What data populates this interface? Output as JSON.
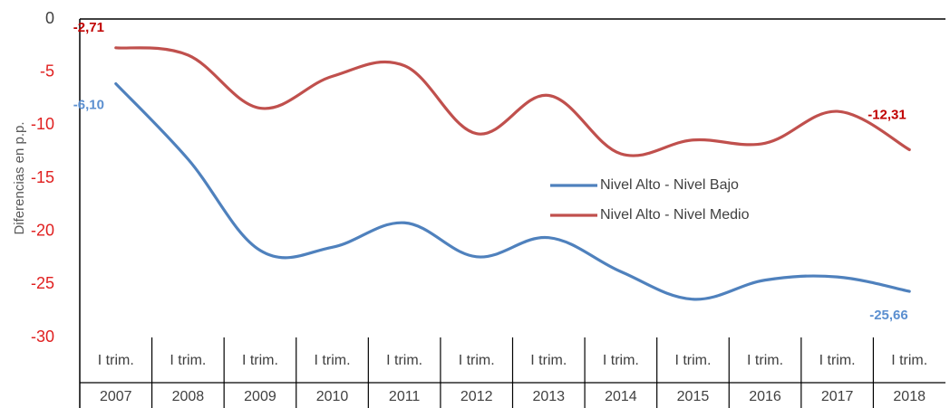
{
  "chart_data": {
    "type": "line",
    "categories": [
      [
        "I trim.",
        "2007"
      ],
      [
        "I trim.",
        "2008"
      ],
      [
        "I trim.",
        "2009"
      ],
      [
        "I trim.",
        "2010"
      ],
      [
        "I trim.",
        "2011"
      ],
      [
        "I trim.",
        "2012"
      ],
      [
        "I trim.",
        "2013"
      ],
      [
        "I trim.",
        "2014"
      ],
      [
        "I trim.",
        "2015"
      ],
      [
        "I trim.",
        "2016"
      ],
      [
        "I trim.",
        "2017"
      ],
      [
        "I trim.",
        "2018"
      ]
    ],
    "ylabel": "Diferencias en p.p.",
    "ylim": [
      -30,
      0
    ],
    "yticks": [
      "0",
      "-5",
      "-10",
      "-15",
      "-20",
      "-25",
      "-30"
    ],
    "legend_position": "right",
    "series": [
      {
        "name": "Nivel Alto - Nivel Bajo",
        "color": "#4f81bd",
        "values": [
          -6.1,
          -13.2,
          -21.8,
          -21.5,
          -19.2,
          -22.4,
          -20.6,
          -23.8,
          -26.4,
          -24.6,
          -24.3,
          -25.66
        ],
        "labels": [
          {
            "index": 0,
            "text": "-6,10"
          },
          {
            "index": 11,
            "text": "-25,66"
          }
        ]
      },
      {
        "name": "Nivel Alto - Nivel Medio",
        "color": "#c0504d",
        "values": [
          -2.71,
          -3.4,
          -8.4,
          -5.4,
          -4.4,
          -10.8,
          -7.2,
          -12.7,
          -11.4,
          -11.7,
          -8.7,
          -12.31
        ],
        "labels": [
          {
            "index": 0,
            "text": "-2,71"
          },
          {
            "index": 11,
            "text": "-12,31"
          }
        ]
      }
    ],
    "colors": {
      "ytick": "#e02020",
      "ytick_zero": "#404040",
      "axis": "#000000",
      "label_bajo": "#5b8fd0",
      "label_medio": "#c00000"
    }
  }
}
